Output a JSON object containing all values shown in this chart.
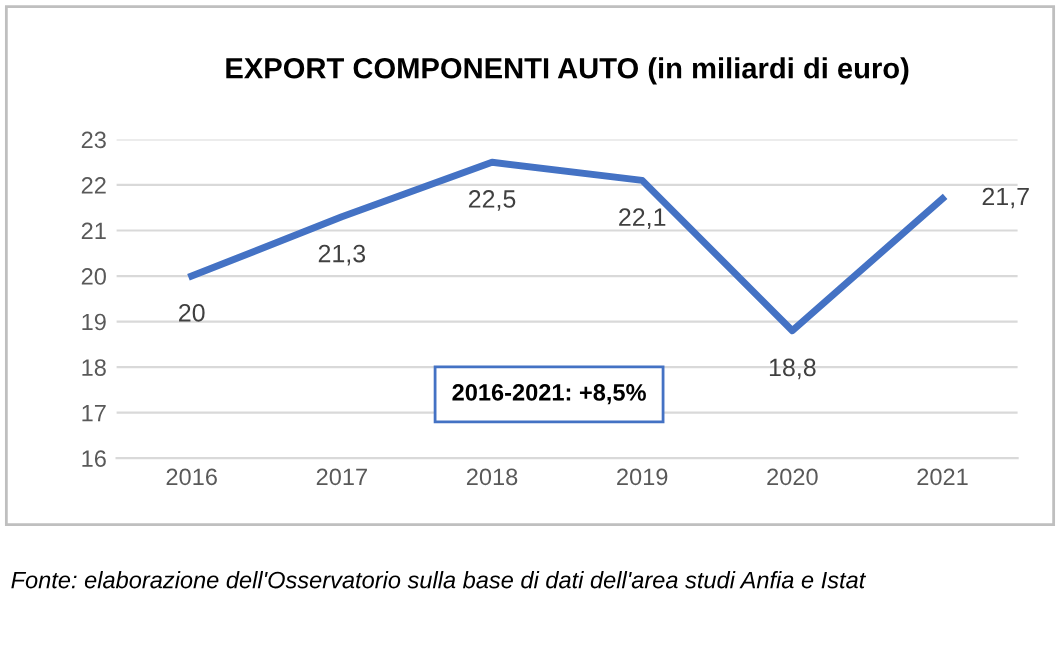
{
  "chart_data": {
    "type": "line",
    "title": "EXPORT COMPONENTI AUTO (in miliardi di euro)",
    "categories": [
      "2016",
      "2017",
      "2018",
      "2019",
      "2020",
      "2021"
    ],
    "series": [
      {
        "color": "#4472c4",
        "values": [
          20,
          21.3,
          22.5,
          22.1,
          18.8,
          21.7
        ],
        "value_labels": [
          "20",
          "21,3",
          "22,5",
          "22,1",
          "18,8",
          "21,7"
        ]
      }
    ],
    "ylim": [
      16,
      23
    ],
    "yticks": [
      16,
      17,
      18,
      19,
      20,
      21,
      22,
      23
    ],
    "grid": "y",
    "marker": "none",
    "line_style": "solid",
    "annotations": [
      "2016-2021: +8,5%",
      "Fonte: elaborazione dell'Osservatorio sulla base di dati dell'area studi Anfia e Istat"
    ]
  }
}
